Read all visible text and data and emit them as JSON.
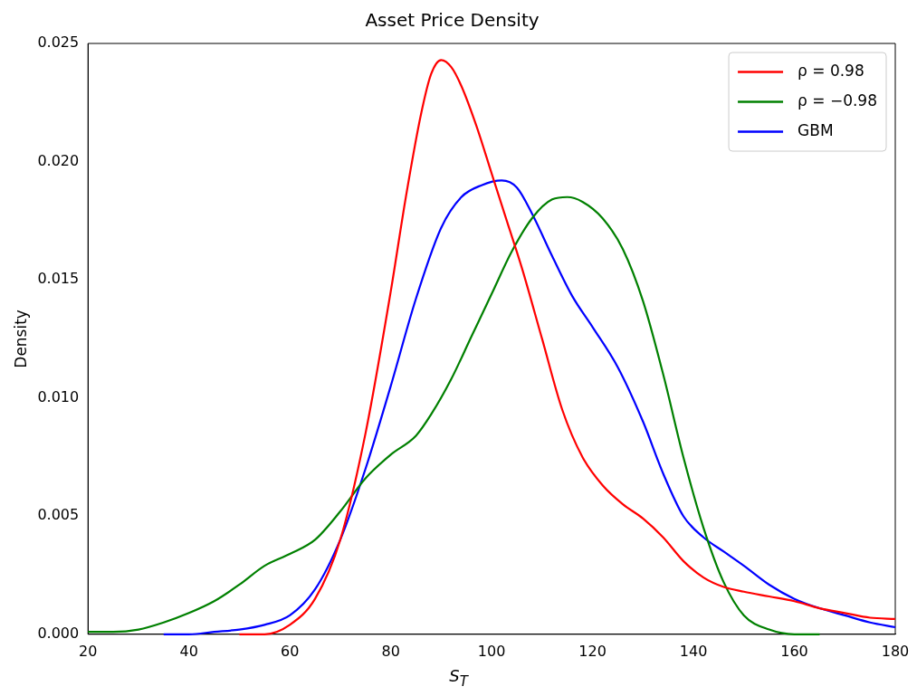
{
  "chart_data": {
    "type": "line",
    "title": "Asset Price Density",
    "xlabel": "S$_{T}$",
    "ylabel": "Density",
    "xlim": [
      20,
      180
    ],
    "xticks": [
      20,
      40,
      60,
      80,
      100,
      120,
      140,
      160,
      180
    ],
    "ylim": [
      0,
      0.025
    ],
    "yticks": [
      {
        "value": 0,
        "label": "0.000"
      },
      {
        "value": 0.005,
        "label": "0.005"
      },
      {
        "value": 0.01,
        "label": "0.010"
      },
      {
        "value": 0.015,
        "label": "0.015"
      },
      {
        "value": 0.02,
        "label": "0.020"
      },
      {
        "value": 0.025,
        "label": "0.025"
      }
    ],
    "grid": false,
    "legend": "top right",
    "marker": "none",
    "line_style": "solid",
    "series": [
      {
        "name": "ρ = 0.98",
        "color": "#ff0000",
        "x": [
          50,
          55,
          60,
          65,
          70,
          75,
          80,
          83,
          86,
          88,
          90,
          92,
          94,
          97,
          100,
          103,
          106,
          110,
          114,
          118,
          122,
          126,
          130,
          134,
          138,
          142,
          146,
          150,
          155,
          160,
          165,
          170,
          175,
          180
        ],
        "values": [
          0,
          0,
          0.0004,
          0.0015,
          0.004,
          0.0085,
          0.0145,
          0.0185,
          0.022,
          0.0237,
          0.0243,
          0.024,
          0.0232,
          0.0215,
          0.0195,
          0.0175,
          0.0155,
          0.0125,
          0.0095,
          0.0075,
          0.0063,
          0.0055,
          0.0049,
          0.0041,
          0.0031,
          0.0024,
          0.002,
          0.0018,
          0.0016,
          0.0014,
          0.0011,
          0.0009,
          0.0007,
          0.00065
        ]
      },
      {
        "name": "ρ = −0.98",
        "color": "#008000",
        "x": [
          20,
          25,
          30,
          35,
          40,
          45,
          50,
          55,
          60,
          65,
          70,
          75,
          80,
          85,
          88,
          92,
          96,
          100,
          104,
          108,
          112,
          115,
          118,
          122,
          126,
          130,
          134,
          138,
          142,
          146,
          150,
          155,
          160,
          165
        ],
        "values": [
          0.0001,
          0.0001,
          0.0002,
          0.0005,
          0.0009,
          0.0014,
          0.0021,
          0.0029,
          0.0034,
          0.004,
          0.0052,
          0.0066,
          0.0076,
          0.0084,
          0.0093,
          0.0108,
          0.0126,
          0.0144,
          0.0162,
          0.0176,
          0.0184,
          0.0185,
          0.0183,
          0.0176,
          0.0163,
          0.0141,
          0.011,
          0.0075,
          0.0045,
          0.0022,
          0.0008,
          0.0002,
          0,
          0
        ]
      },
      {
        "name": "GBM",
        "color": "#0000ff",
        "x": [
          35,
          40,
          45,
          50,
          55,
          60,
          65,
          70,
          75,
          80,
          85,
          90,
          94,
          98,
          102,
          105,
          108,
          112,
          116,
          120,
          125,
          130,
          134,
          138,
          142,
          146,
          150,
          155,
          160,
          165,
          170,
          175,
          180
        ],
        "values": [
          0,
          0,
          0.0001,
          0.0002,
          0.0004,
          0.0008,
          0.0019,
          0.004,
          0.007,
          0.0105,
          0.0142,
          0.0172,
          0.0185,
          0.019,
          0.0192,
          0.0189,
          0.0178,
          0.016,
          0.0143,
          0.013,
          0.0113,
          0.009,
          0.0068,
          0.005,
          0.0041,
          0.0035,
          0.0029,
          0.0021,
          0.0015,
          0.0011,
          0.0008,
          0.0005,
          0.0003
        ]
      }
    ]
  }
}
